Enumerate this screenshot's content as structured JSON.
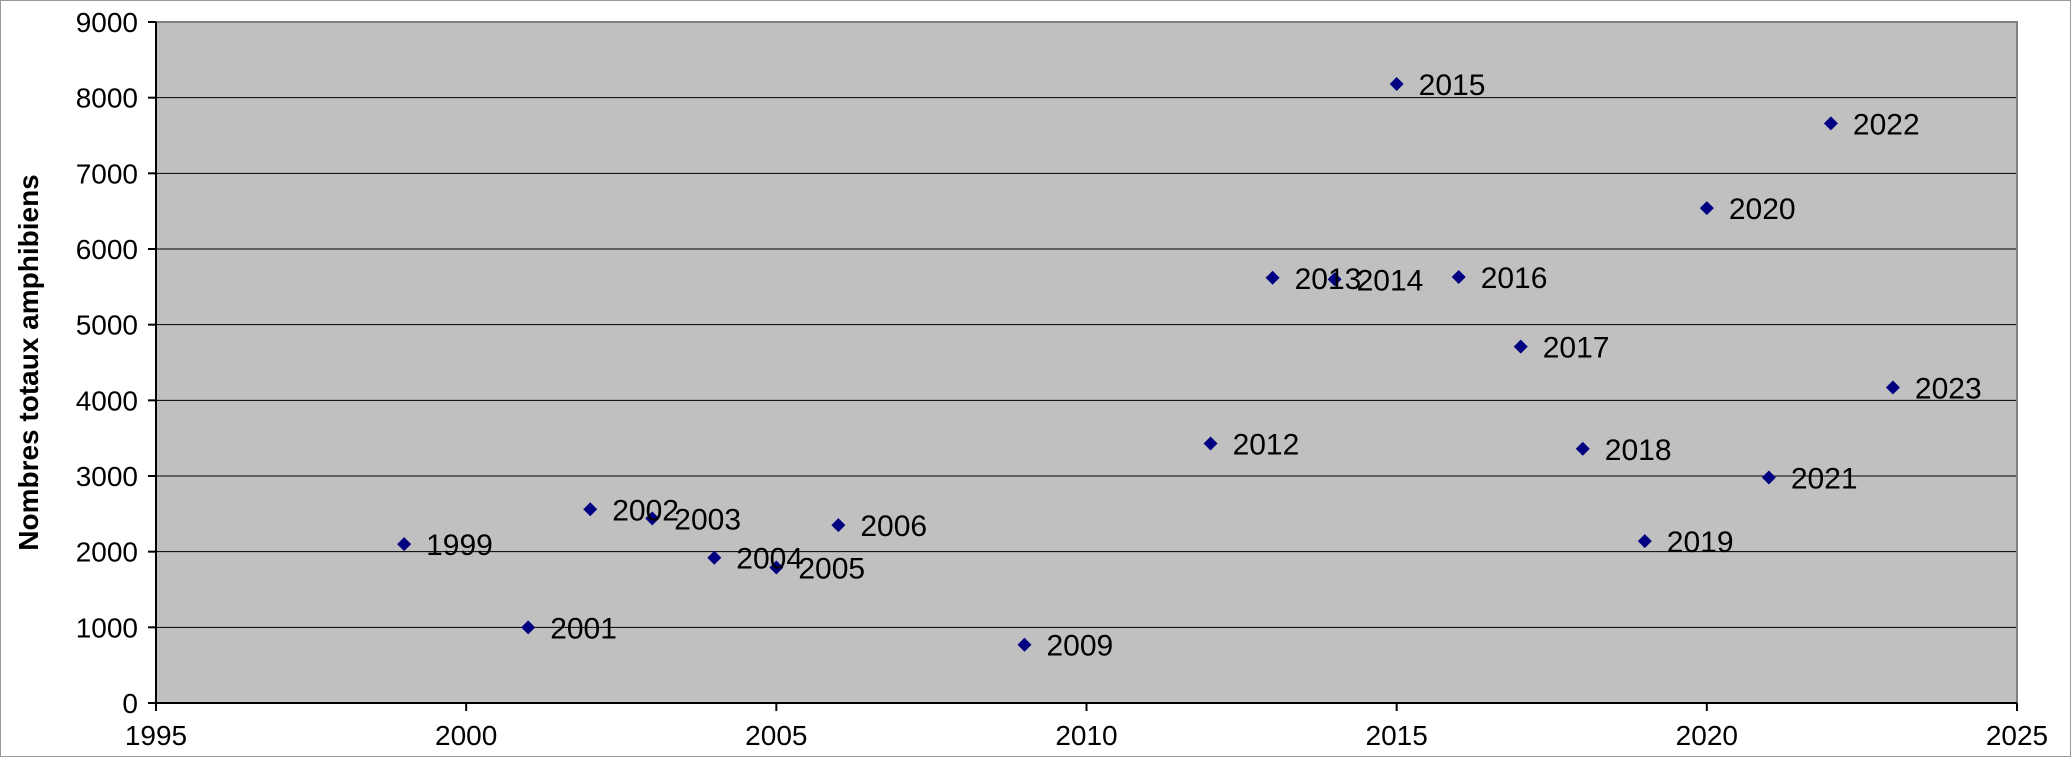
{
  "chart_data": {
    "type": "scatter",
    "title": "",
    "xlabel": "",
    "ylabel": "Nombres totaux amphibiens",
    "xlim": [
      1995,
      2025
    ],
    "ylim": [
      0,
      9000
    ],
    "x_ticks": [
      1995,
      2000,
      2005,
      2010,
      2015,
      2020,
      2025
    ],
    "y_ticks": [
      0,
      1000,
      2000,
      3000,
      4000,
      5000,
      6000,
      7000,
      8000,
      9000
    ],
    "grid": "horizontal",
    "legend": "none",
    "colors": {
      "plot_background": "#c0c0c0",
      "marker": "#000080",
      "gridline": "#000000",
      "page_border": "#999999"
    },
    "series": [
      {
        "points": [
          {
            "x": 1999,
            "y": 2100,
            "label": "1999"
          },
          {
            "x": 2001,
            "y": 1000,
            "label": "2001"
          },
          {
            "x": 2002,
            "y": 2560,
            "label": "2002"
          },
          {
            "x": 2003,
            "y": 2440,
            "label": "2003"
          },
          {
            "x": 2004,
            "y": 1920,
            "label": "2004"
          },
          {
            "x": 2005,
            "y": 1790,
            "label": "2005"
          },
          {
            "x": 2006,
            "y": 2350,
            "label": "2006"
          },
          {
            "x": 2009,
            "y": 770,
            "label": "2009"
          },
          {
            "x": 2012,
            "y": 3430,
            "label": "2012"
          },
          {
            "x": 2013,
            "y": 5620,
            "label": "2013"
          },
          {
            "x": 2014,
            "y": 5600,
            "label": "2014"
          },
          {
            "x": 2015,
            "y": 8180,
            "label": "2015"
          },
          {
            "x": 2016,
            "y": 5630,
            "label": "2016"
          },
          {
            "x": 2017,
            "y": 4710,
            "label": "2017"
          },
          {
            "x": 2018,
            "y": 3360,
            "label": "2018"
          },
          {
            "x": 2019,
            "y": 2140,
            "label": "2019"
          },
          {
            "x": 2020,
            "y": 6540,
            "label": "2020"
          },
          {
            "x": 2021,
            "y": 2980,
            "label": "2021"
          },
          {
            "x": 2022,
            "y": 7660,
            "label": "2022"
          },
          {
            "x": 2023,
            "y": 4170,
            "label": "2023"
          }
        ]
      }
    ]
  }
}
